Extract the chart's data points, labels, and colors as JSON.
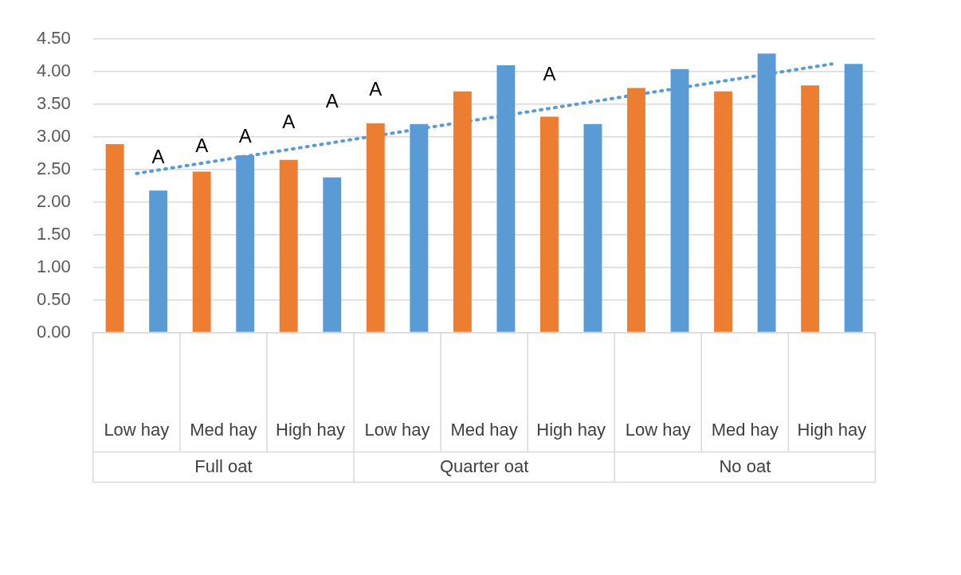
{
  "chart_data": {
    "type": "bar",
    "categories": [
      "Low hay",
      "Med hay",
      "High hay",
      "Low hay",
      "Med hay",
      "High hay",
      "Low hay",
      "Med hay",
      "High hay"
    ],
    "series": [
      {
        "color": "#ed7d31",
        "values": [
          2.89,
          2.47,
          2.65,
          3.21,
          3.7,
          3.31,
          3.75,
          3.7,
          3.79
        ]
      },
      {
        "color": "#5b9bd5",
        "values": [
          2.18,
          2.72,
          2.38,
          3.2,
          4.1,
          3.2,
          4.04,
          4.28,
          4.12
        ]
      },
      {
        "type": "line",
        "color": "#5b9bd5",
        "line_style": "dotted",
        "marker": "none",
        "values": [
          2.44,
          2.65,
          2.86,
          3.07,
          3.28,
          3.49,
          3.7,
          3.91,
          4.12
        ]
      }
    ],
    "ylim": [
      0,
      4.5
    ],
    "yticks": [
      {
        "value": 0,
        "label": "0.00"
      },
      {
        "value": 0.5,
        "label": "0.50"
      },
      {
        "value": 1,
        "label": "1.00"
      },
      {
        "value": 1.5,
        "label": "1.50"
      },
      {
        "value": 2,
        "label": "2.00"
      },
      {
        "value": 2.5,
        "label": "2.50"
      },
      {
        "value": 3,
        "label": "3.00"
      },
      {
        "value": 3.5,
        "label": "3.50"
      },
      {
        "value": 4,
        "label": "4.00"
      },
      {
        "value": 4.5,
        "label": "4.50"
      }
    ],
    "grid": "y",
    "legend": false,
    "annotations": [
      "Full oat",
      "Quarter oat",
      "No oat",
      "A",
      "A",
      "A",
      "A",
      "A",
      "A",
      "A"
    ]
  }
}
